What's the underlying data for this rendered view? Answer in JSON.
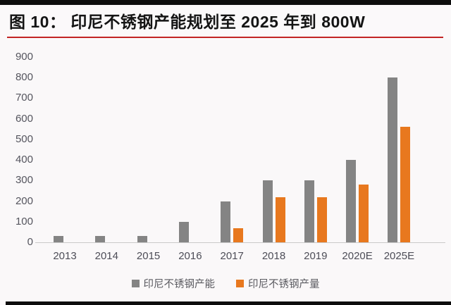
{
  "header": {
    "title": "图 10：  印尼不锈钢产能规划至 2025 年到 800W"
  },
  "colors": {
    "frame_black": "#0d0d0d",
    "accent_red": "#c32424",
    "bar_gray": "#848484",
    "bar_orange": "#e8781e",
    "axis_line": "#c9c9c9",
    "axis_text": "#55555e",
    "background": "#faf8f9"
  },
  "chart_data": {
    "type": "bar",
    "title": "图 10：  印尼不锈钢产能规划至 2025 年到 800W",
    "categories": [
      "2013",
      "2014",
      "2015",
      "2016",
      "2017",
      "2018",
      "2019",
      "2020E",
      "2025E"
    ],
    "series": [
      {
        "name": "印尼不锈钢产能",
        "color": "#848484",
        "values": [
          30,
          30,
          30,
          100,
          200,
          300,
          300,
          400,
          800
        ]
      },
      {
        "name": "印尼不锈钢产量",
        "color": "#e8781e",
        "values": [
          0,
          0,
          0,
          0,
          70,
          220,
          220,
          280,
          560
        ]
      }
    ],
    "xlabel": "",
    "ylabel": "",
    "ylim": [
      0,
      900
    ],
    "ytick_step": 100,
    "grid": false,
    "legend_position": "bottom"
  }
}
